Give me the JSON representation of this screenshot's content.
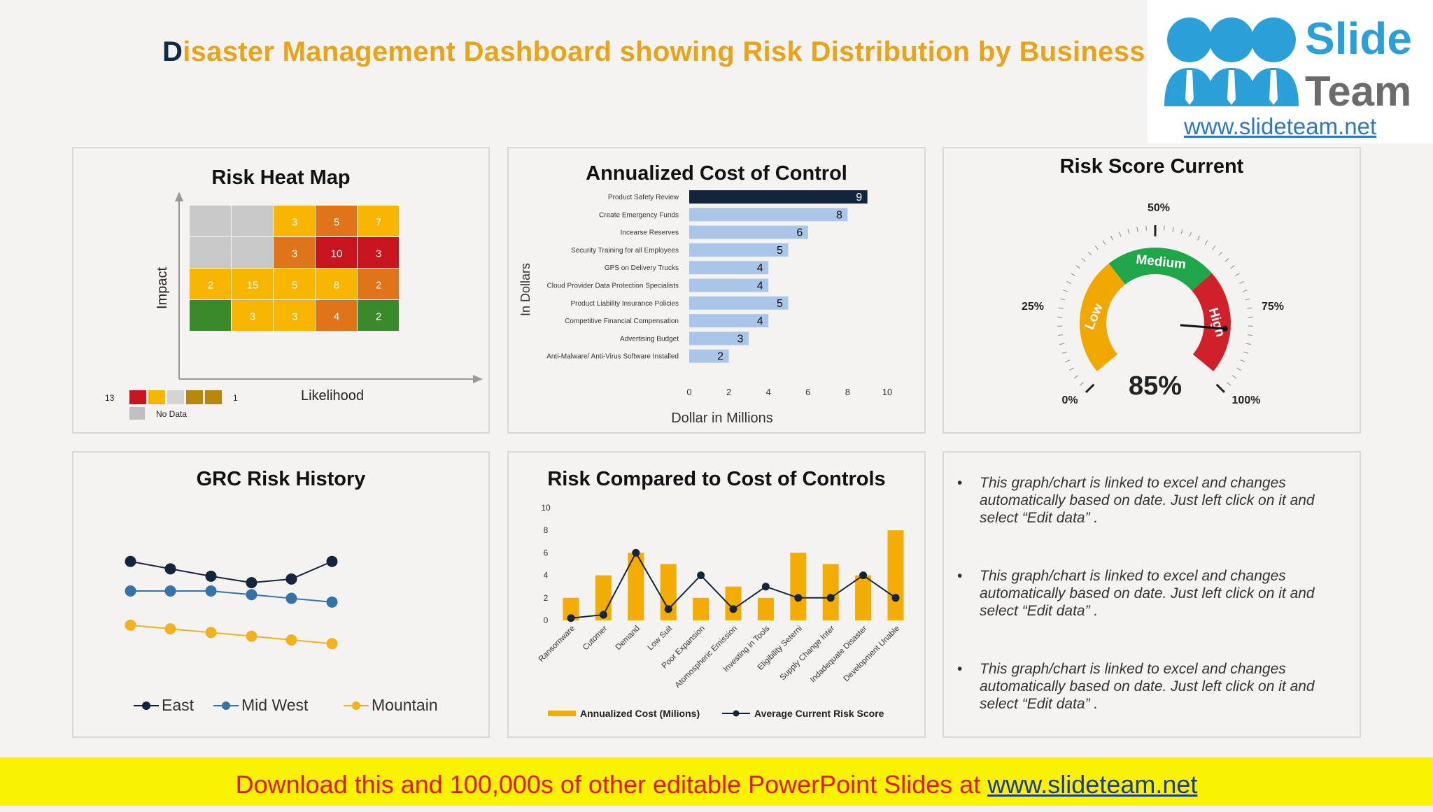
{
  "header": {
    "title_first": "D",
    "title_rest": "isaster Management Dashboard showing Risk Distribution by Business"
  },
  "logo": {
    "word1": "Slide",
    "word2": "Team",
    "url": "www.slideteam.net"
  },
  "heatmap": {
    "title": "Risk Heat Map",
    "y_label": "Impact",
    "x_label": "Likelihood",
    "cells": [
      [
        {
          "v": "",
          "c": "#c8c8c8"
        },
        {
          "v": "",
          "c": "#c8c8c8"
        },
        {
          "v": "3",
          "c": "#f7b500"
        },
        {
          "v": "5",
          "c": "#e0741a"
        },
        {
          "v": "7",
          "c": "#f7b500"
        }
      ],
      [
        {
          "v": "",
          "c": "#c8c8c8"
        },
        {
          "v": "",
          "c": "#c8c8c8"
        },
        {
          "v": "3",
          "c": "#e0741a"
        },
        {
          "v": "10",
          "c": "#c8141e"
        },
        {
          "v": "3",
          "c": "#c8141e"
        }
      ],
      [
        {
          "v": "2",
          "c": "#f7b500"
        },
        {
          "v": "15",
          "c": "#f7b500"
        },
        {
          "v": "5",
          "c": "#f7b500"
        },
        {
          "v": "8",
          "c": "#f7b500"
        },
        {
          "v": "2",
          "c": "#e0741a"
        }
      ],
      [
        {
          "v": "",
          "c": "#3a8a2a"
        },
        {
          "v": "3",
          "c": "#f7b500"
        },
        {
          "v": "3",
          "c": "#f7b500"
        },
        {
          "v": "4",
          "c": "#e0741a"
        },
        {
          "v": "2",
          "c": "#3a8a2a"
        }
      ]
    ],
    "legend_max": "13",
    "legend_min": "1",
    "legend_colors": [
      "#c8141e",
      "#f7b500",
      "#d4d4d4",
      "#b8860b",
      "#b8860b"
    ],
    "no_data_label": "No Data"
  },
  "cost_chart": {
    "title": "Annualized Cost of Control",
    "chart_data": {
      "type": "bar",
      "orientation": "horizontal",
      "categories": [
        "Product Safety Review",
        "Create Emergency Funds",
        "Incearse Reserves",
        "Security Training for all Employees",
        "GPS on Delivery Trucks",
        "Cloud Provider Data Protection Specialists",
        "Product Liability Insurance Policies",
        "Competitive Financial Compensation",
        "Advertising Budget",
        "Anti-Malware/ Anti-Virus Software Installed"
      ],
      "values": [
        9,
        8,
        6,
        5,
        4,
        4,
        5,
        4,
        3,
        2
      ],
      "xlabel": "Dollar in Millions",
      "ylabel": "In Dollars",
      "xlim": [
        0,
        10
      ],
      "xticks": [
        "0",
        "2",
        "4",
        "6",
        "8",
        "10"
      ]
    }
  },
  "gauge": {
    "title": "Risk Score Current",
    "value_label": "85%",
    "value": 85,
    "labels": {
      "p0": "0%",
      "p25": "25%",
      "p50": "50%",
      "p75": "75%",
      "p100": "100%"
    },
    "bands": {
      "low": "Low",
      "medium": "Medium",
      "high": "High"
    },
    "colors": {
      "low": "#f0a800",
      "medium": "#1fa64a",
      "high": "#d0202a"
    }
  },
  "grc_history": {
    "title": "GRC Risk History",
    "chart_data": {
      "type": "line",
      "x": [
        1,
        2,
        3,
        4,
        5,
        6
      ],
      "series": [
        {
          "name": "East",
          "color": "#14243a",
          "values": [
            5.7,
            4.9,
            4.1,
            3.4,
            3.8,
            5.7
          ]
        },
        {
          "name": "Mid West",
          "color": "#3572a8",
          "values": [
            2.5,
            2.5,
            2.5,
            2.1,
            1.7,
            1.3
          ]
        },
        {
          "name": "Mountain",
          "color": "#f2b11e",
          "values": [
            -1.2,
            -1.6,
            -2.0,
            -2.4,
            -2.8,
            -3.2
          ]
        }
      ],
      "ylim": [
        -4.5,
        7
      ]
    }
  },
  "compare_chart": {
    "title": "Risk Compared to Cost of Controls",
    "chart_data": {
      "type": "bar",
      "categories": [
        "Ransomware",
        "Cutomer",
        "Demand",
        "Low Suit",
        "Poor Expansion",
        "Atomospheric Emission",
        "Investing in Tools",
        "Eligibility Seterni",
        "Supply Change Inter",
        "Indadequate Disaster",
        "Development Unable"
      ],
      "series": [
        {
          "name": "Annualized Cost (Milions)",
          "type": "bar",
          "color": "#f2ad00",
          "values": [
            2,
            4,
            6,
            5,
            2,
            3,
            2,
            6,
            5,
            4,
            8
          ]
        },
        {
          "name": "Average Current Risk Score",
          "type": "line",
          "color": "#14243a",
          "values": [
            0.2,
            0.5,
            6,
            1,
            4,
            1,
            3,
            2,
            2,
            4,
            2
          ]
        }
      ],
      "ylim": [
        0,
        10
      ],
      "yticks": [
        "0",
        "2",
        "4",
        "6",
        "8",
        "10"
      ]
    }
  },
  "notes": [
    "This graph/chart is linked to excel and changes automatically based on date. Just left click on it and select “Edit data” .",
    "This graph/chart is linked to excel and changes automatically based on date. Just left click on it and select “Edit data” .",
    "This graph/chart is linked to excel and changes automatically based on date. Just left click on it and select “Edit data” ."
  ],
  "footer": {
    "text": "Download this and 100,000s of other editable PowerPoint Slides at ",
    "link": "www.slideteam.net"
  }
}
